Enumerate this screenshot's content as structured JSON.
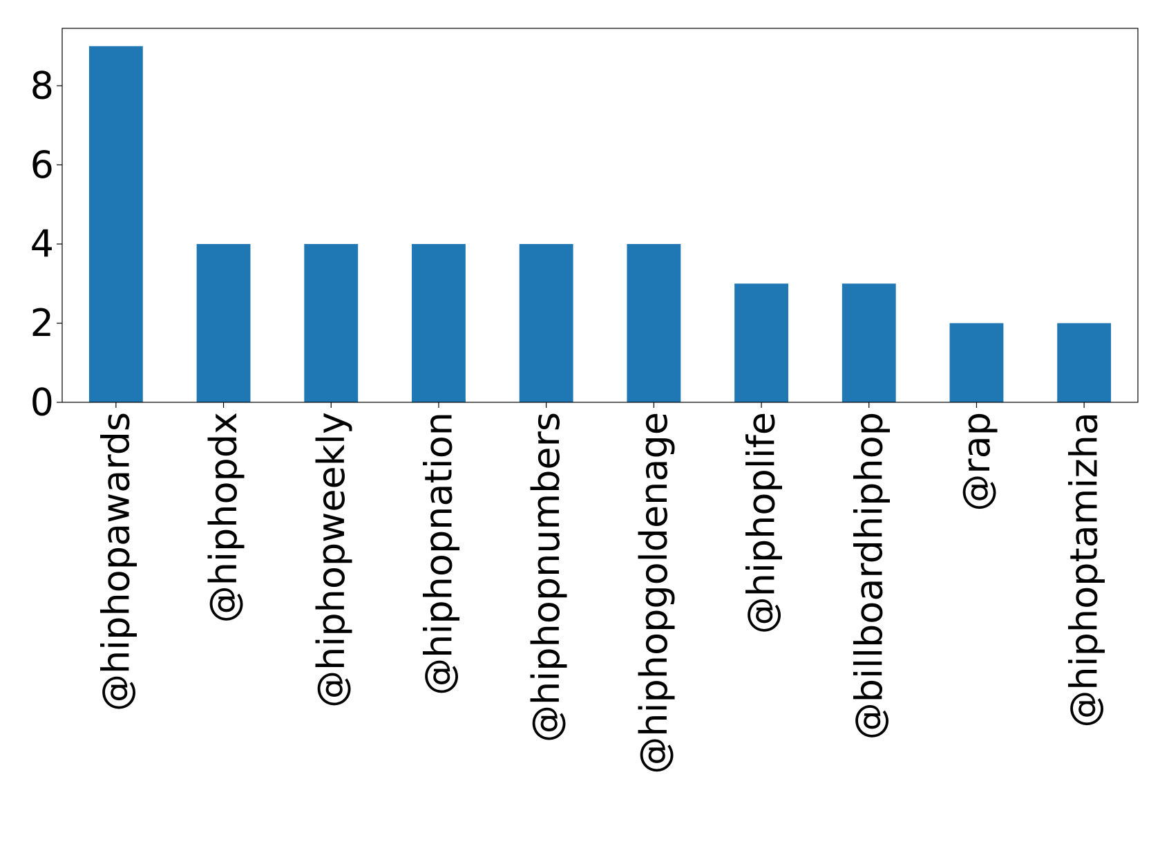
{
  "chart_data": {
    "type": "bar",
    "title": "",
    "xlabel": "",
    "ylabel": "",
    "categories": [
      "@hiphopawards",
      "@hiphopdx",
      "@hiphopweekly",
      "@hiphopnation",
      "@hiphopnumbers",
      "@hiphopgoldenage",
      "@hiphoplife",
      "@billboardhiphop",
      "@rap",
      "@hiphoptamizha"
    ],
    "values": [
      9,
      4,
      4,
      4,
      4,
      4,
      3,
      3,
      2,
      2
    ],
    "ylim": [
      0,
      9.45
    ],
    "yticks": [
      0,
      2,
      4,
      6,
      8
    ],
    "grid": false,
    "legend": "none",
    "bar_color": "#1f77b4"
  }
}
